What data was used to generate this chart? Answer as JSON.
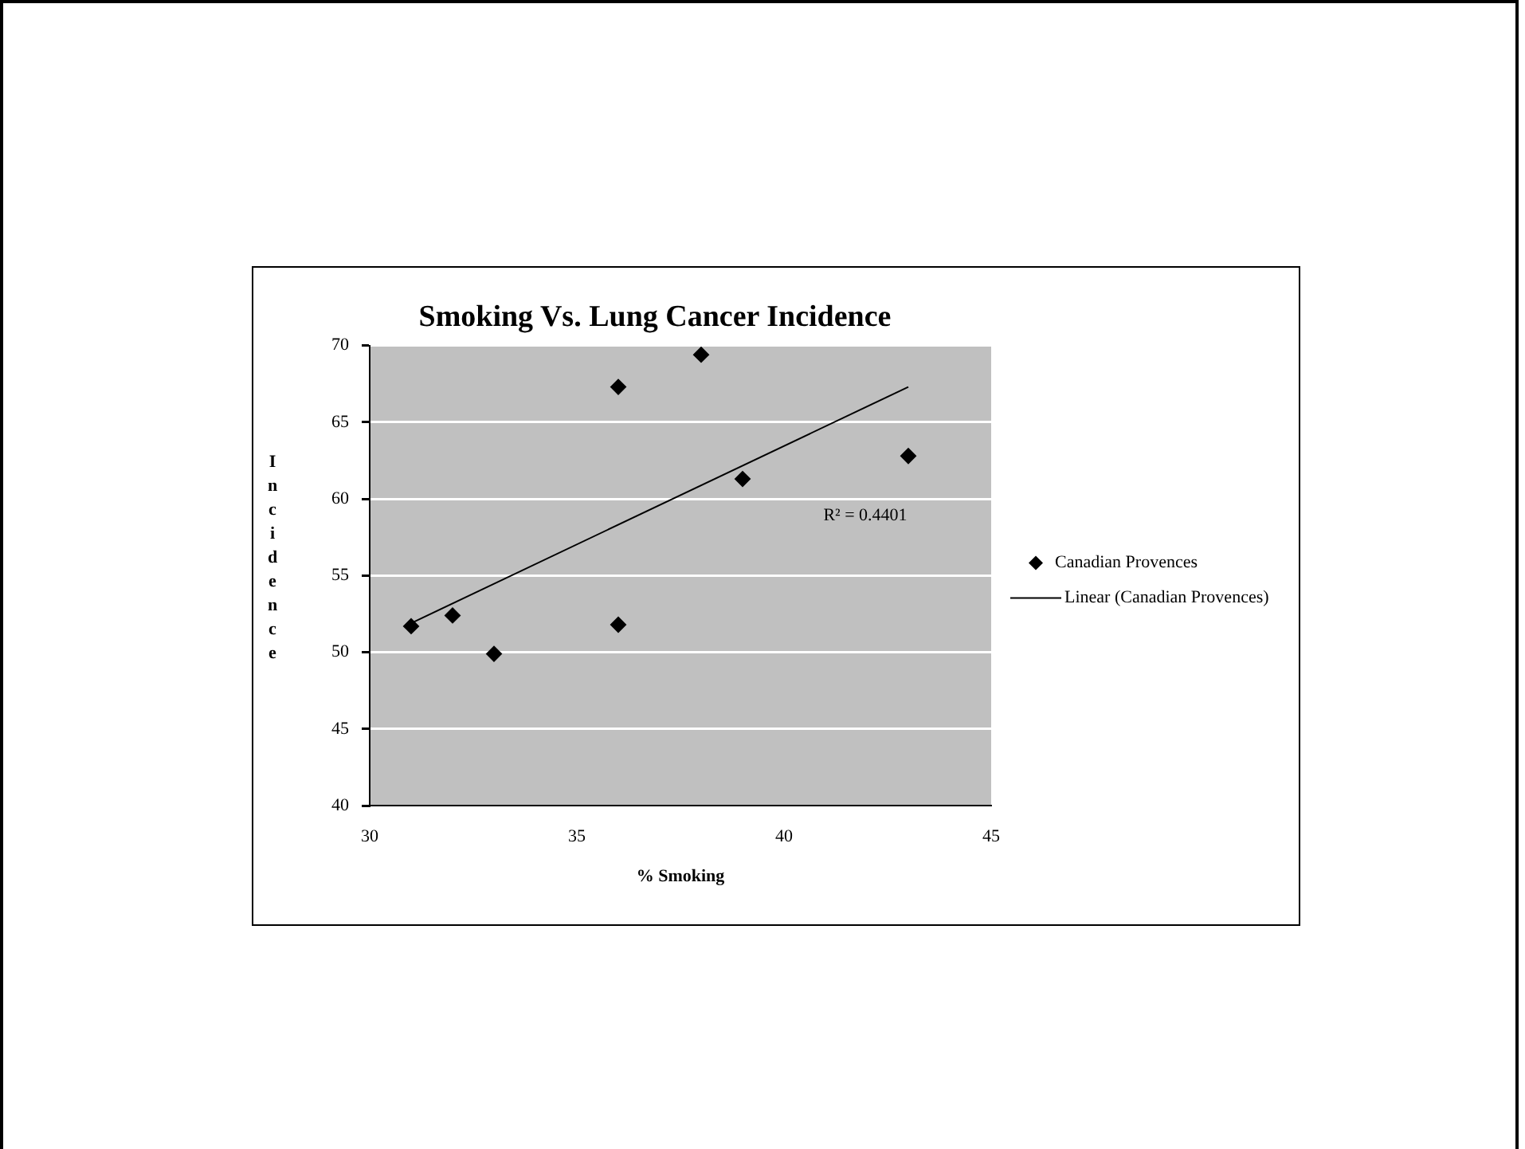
{
  "chart_data": {
    "type": "scatter",
    "title": "Smoking Vs. Lung Cancer Incidence",
    "xlabel": "% Smoking",
    "ylabel": "Incidence",
    "xlim": [
      30,
      45
    ],
    "xticks": [
      30,
      35,
      40,
      45
    ],
    "ylim": [
      40,
      70
    ],
    "yticks": [
      40,
      45,
      50,
      55,
      60,
      65,
      70
    ],
    "grid": "y",
    "legend": "right",
    "marker": "diamond",
    "annotations": [
      "R² = 0.4401"
    ],
    "series": [
      {
        "name": "Canadian Provences",
        "color": "#000000",
        "x": [
          31,
          32,
          33,
          36,
          36,
          38,
          39,
          43
        ],
        "values": [
          51.7,
          52.4,
          49.9,
          67.3,
          51.8,
          69.4,
          61.3,
          62.8
        ]
      },
      {
        "name": "Linear (Canadian Provences)",
        "type": "line",
        "color": "#000000",
        "marker": "none",
        "x": [
          31,
          43
        ],
        "values": [
          51.9,
          67.3
        ]
      }
    ]
  }
}
